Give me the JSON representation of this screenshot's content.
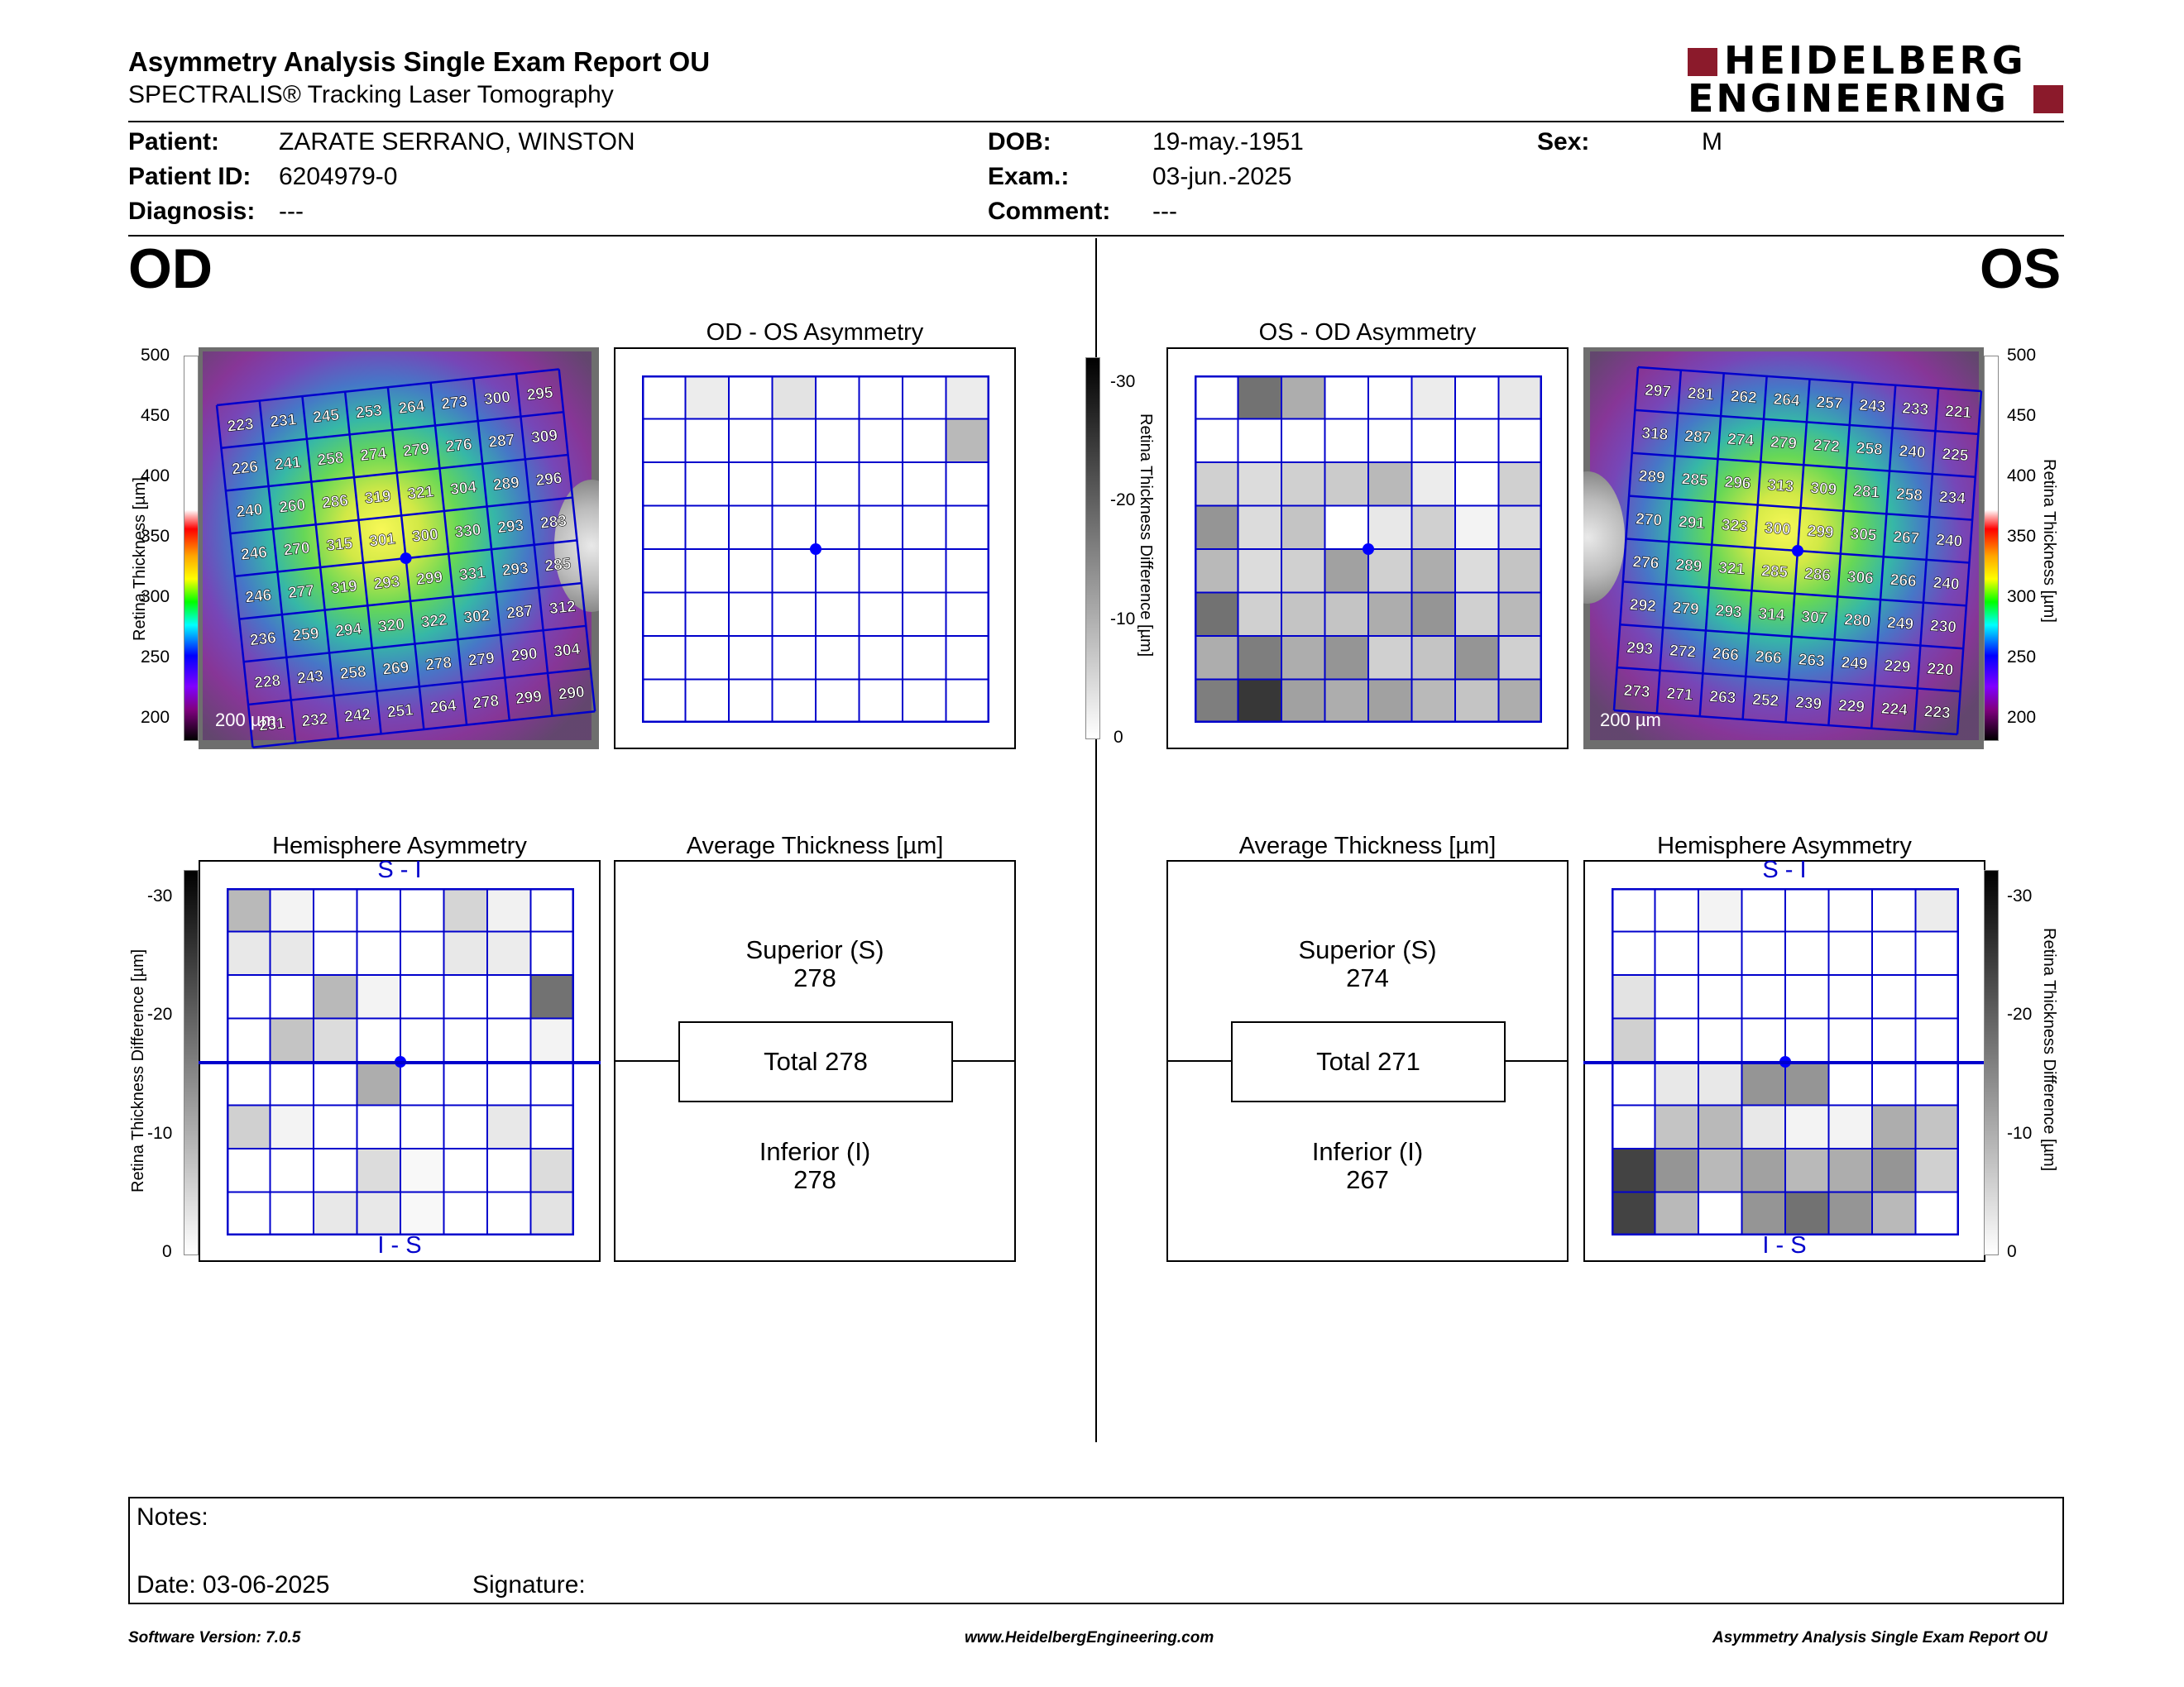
{
  "header": {
    "title": "Asymmetry Analysis Single Exam Report OU",
    "subtitle": "SPECTRALIS® Tracking Laser Tomography",
    "logo_line1": "HEIDELBERG",
    "logo_line2": "ENGINEERING"
  },
  "patient": {
    "patient_label": "Patient:",
    "patient_value": "ZARATE SERRANO, WINSTON",
    "id_label": "Patient ID:",
    "id_value": "6204979-0",
    "diagnosis_label": "Diagnosis:",
    "diagnosis_value": "---",
    "dob_label": "DOB:",
    "dob_value": "19-may.-1951",
    "exam_label": "Exam.:",
    "exam_value": "03-jun.-2025",
    "comment_label": "Comment:",
    "comment_value": "---",
    "sex_label": "Sex:",
    "sex_value": "M"
  },
  "od": {
    "eye_label": "OD",
    "scale_bar": "200 µm",
    "thickness_grid": [
      [
        223,
        231,
        245,
        253,
        264,
        273,
        300,
        295
      ],
      [
        226,
        241,
        258,
        274,
        279,
        276,
        287,
        309
      ],
      [
        240,
        260,
        286,
        319,
        321,
        304,
        289,
        296
      ],
      [
        246,
        270,
        315,
        301,
        300,
        330,
        293,
        283
      ],
      [
        246,
        277,
        319,
        293,
        299,
        331,
        293,
        285
      ],
      [
        236,
        259,
        294,
        320,
        322,
        302,
        287,
        312
      ],
      [
        228,
        243,
        258,
        269,
        278,
        279,
        290,
        304
      ],
      [
        231,
        232,
        242,
        251,
        264,
        278,
        299,
        290
      ]
    ],
    "asymmetry_title": "OD - OS Asymmetry",
    "asymmetry_grid": [
      [
        0,
        0.08,
        0,
        0.12,
        0,
        0,
        0,
        0.08
      ],
      [
        0,
        0,
        0,
        0,
        0,
        0,
        0,
        0.3
      ],
      [
        0,
        0,
        0,
        0,
        0,
        0,
        0,
        0
      ],
      [
        0,
        0,
        0,
        0,
        0,
        0,
        0,
        0
      ],
      [
        0,
        0,
        0,
        0,
        0,
        0,
        0,
        0
      ],
      [
        0,
        0,
        0,
        0,
        0,
        0,
        0,
        0
      ],
      [
        0,
        0,
        0,
        0,
        0,
        0,
        0,
        0
      ],
      [
        0,
        0,
        0,
        0,
        0,
        0,
        0,
        0
      ]
    ],
    "hemisphere_title": "Hemisphere Asymmetry",
    "hemi_top": "S - I",
    "hemi_bottom": "I - S",
    "hemisphere_grid": [
      [
        0.3,
        0.05,
        0,
        0,
        0,
        0.18,
        0.06,
        0
      ],
      [
        0.1,
        0.1,
        0,
        0,
        0,
        0.1,
        0.08,
        0
      ],
      [
        0,
        0,
        0.3,
        0.05,
        0,
        0,
        0,
        0.6
      ],
      [
        0,
        0.25,
        0.15,
        0,
        0,
        0,
        0,
        0.05
      ],
      [
        0,
        0,
        0,
        0.35,
        0,
        0,
        0,
        0
      ],
      [
        0.2,
        0.05,
        0,
        0,
        0,
        0,
        0.1,
        0
      ],
      [
        0,
        0,
        0,
        0.15,
        0.03,
        0,
        0,
        0.15
      ],
      [
        0,
        0,
        0.1,
        0.1,
        0.03,
        0,
        0,
        0.12
      ]
    ],
    "average_title": "Average Thickness [µm]",
    "superior_label": "Superior (S)",
    "superior_value": "278",
    "total_label": "Total 278",
    "inferior_label": "Inferior (I)",
    "inferior_value": "278"
  },
  "os": {
    "eye_label": "OS",
    "scale_bar": "200 µm",
    "thickness_grid": [
      [
        297,
        281,
        262,
        264,
        257,
        243,
        233,
        221
      ],
      [
        318,
        287,
        274,
        279,
        272,
        258,
        240,
        225
      ],
      [
        289,
        285,
        296,
        313,
        309,
        281,
        258,
        234
      ],
      [
        270,
        291,
        323,
        300,
        299,
        305,
        267,
        240
      ],
      [
        276,
        289,
        321,
        285,
        286,
        306,
        266,
        240
      ],
      [
        292,
        279,
        293,
        314,
        307,
        280,
        249,
        230
      ],
      [
        293,
        272,
        266,
        266,
        263,
        249,
        229,
        220
      ],
      [
        273,
        271,
        263,
        252,
        239,
        229,
        224,
        223
      ]
    ],
    "asymmetry_title": "OS - OD Asymmetry",
    "asymmetry_grid": [
      [
        0,
        0.6,
        0.35,
        0,
        0,
        0.08,
        0,
        0.1
      ],
      [
        0,
        0,
        0,
        0,
        0,
        0,
        0,
        0
      ],
      [
        0.2,
        0.15,
        0.2,
        0.22,
        0.3,
        0.08,
        0,
        0.2
      ],
      [
        0.45,
        0.15,
        0.25,
        0,
        0.1,
        0.2,
        0.05,
        0.15
      ],
      [
        0.3,
        0.15,
        0.2,
        0.4,
        0.2,
        0.35,
        0.15,
        0.25
      ],
      [
        0.6,
        0.2,
        0.25,
        0.25,
        0.35,
        0.45,
        0.2,
        0.3
      ],
      [
        0.35,
        0.55,
        0.35,
        0.45,
        0.2,
        0.25,
        0.45,
        0.2
      ],
      [
        0.55,
        0.85,
        0.4,
        0.35,
        0.4,
        0.3,
        0.25,
        0.35
      ]
    ],
    "hemisphere_title": "Hemisphere Asymmetry",
    "hemi_top": "S - I",
    "hemi_bottom": "I - S",
    "hemisphere_grid": [
      [
        0,
        0,
        0.05,
        0,
        0,
        0,
        0,
        0.08
      ],
      [
        0,
        0,
        0,
        0,
        0,
        0,
        0,
        0
      ],
      [
        0.12,
        0,
        0,
        0,
        0,
        0,
        0,
        0
      ],
      [
        0.2,
        0,
        0,
        0,
        0,
        0,
        0,
        0
      ],
      [
        0,
        0.1,
        0.1,
        0.45,
        0.45,
        0,
        0,
        0
      ],
      [
        0,
        0.25,
        0.3,
        0.1,
        0.05,
        0.05,
        0.35,
        0.25
      ],
      [
        0.8,
        0.45,
        0.3,
        0.4,
        0.3,
        0.35,
        0.45,
        0.2
      ],
      [
        0.8,
        0.3,
        0,
        0.45,
        0.6,
        0.45,
        0.3,
        0
      ]
    ],
    "average_title": "Average Thickness [µm]",
    "superior_label": "Superior (S)",
    "superior_value": "274",
    "total_label": "Total 271",
    "inferior_label": "Inferior (I)",
    "inferior_value": "267"
  },
  "thickness_scale": {
    "label": "Retina Thickness [µm]",
    "ticks": [
      "500",
      "450",
      "400",
      "350",
      "300",
      "250",
      "200"
    ]
  },
  "difference_scale": {
    "label": "Retina Thickness Difference [µm]",
    "ticks": [
      "-30",
      "-20",
      "-10",
      "0"
    ]
  },
  "notes": {
    "notes_label": "Notes:",
    "date_label": "Date: 03-06-2025",
    "signature_label": "Signature:"
  },
  "footer": {
    "software": "Software Version: 7.0.5",
    "website": "www.HeidelbergEngineering.com",
    "report": "Asymmetry Analysis Single Exam Report OU"
  },
  "colors": {
    "grid_blue": "#0000cc",
    "logo_red": "#8b1a2b",
    "fovea_blue": "#0000ff"
  }
}
